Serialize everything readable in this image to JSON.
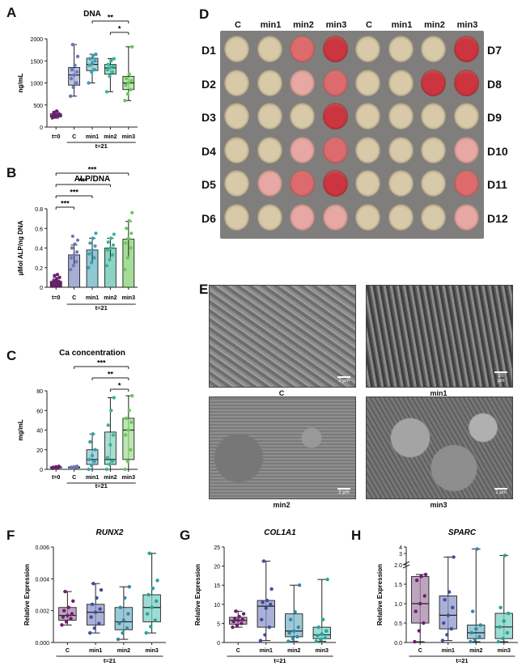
{
  "panels": {
    "A": {
      "letter": "A"
    },
    "B": {
      "letter": "B"
    },
    "C": {
      "letter": "C"
    },
    "D": {
      "letter": "D"
    },
    "E": {
      "letter": "E"
    },
    "F": {
      "letter": "F"
    },
    "G": {
      "letter": "G"
    },
    "H": {
      "letter": "H"
    }
  },
  "plate": {
    "col_labels": [
      "C",
      "min1",
      "min2",
      "min3",
      "C",
      "min1",
      "min2",
      "min3"
    ],
    "left_labels": [
      "D1",
      "D2",
      "D3",
      "D4",
      "D5",
      "D6"
    ],
    "right_labels": [
      "D7",
      "D8",
      "D9",
      "D10",
      "D11",
      "D12"
    ],
    "stain_levels": [
      [
        0,
        0,
        2,
        3,
        0,
        0,
        0,
        3
      ],
      [
        0,
        0,
        1,
        2,
        0,
        0,
        3,
        3
      ],
      [
        0,
        0,
        0,
        3,
        0,
        0,
        0,
        0
      ],
      [
        0,
        0,
        1,
        2,
        0,
        0,
        0,
        1
      ],
      [
        0,
        1,
        2,
        3,
        0,
        0,
        0,
        2
      ],
      [
        0,
        0,
        1,
        1,
        0,
        0,
        0,
        1
      ]
    ],
    "colors": {
      "well_plain": "#d8c9a8",
      "stain_light": "#e7a7a3",
      "stain_mid": "#dd6b6e",
      "stain_strong": "#cc3440",
      "plate_bg": "#7f7e7c"
    }
  },
  "sem": {
    "labels": [
      "C",
      "min1",
      "min2",
      "min3"
    ],
    "scale_text": [
      "2 µm",
      "20 µm",
      "2 µm",
      "2 µm"
    ]
  },
  "chart_data": [
    {
      "id": "A",
      "type": "box",
      "title": "DNA",
      "ylabel": "ng/mL",
      "ylim": [
        0,
        2000
      ],
      "yticks": [
        0,
        500,
        1000,
        1500,
        2000
      ],
      "categories": [
        "t=0",
        "C",
        "min1",
        "min2",
        "min3"
      ],
      "group_label": "t=21",
      "colors": [
        "#6b1f6e",
        "#6a78b8",
        "#3b9fb3",
        "#38b59a",
        "#66cc55"
      ],
      "fills": [
        "#8d5a8f",
        "#a7add4",
        "#8fc8d2",
        "#8dd3c2",
        "#a5dd98"
      ],
      "boxes": [
        {
          "min": 200,
          "q1": 230,
          "median": 260,
          "q3": 300,
          "max": 360,
          "points": [
            210,
            230,
            250,
            260,
            270,
            300,
            330,
            360
          ]
        },
        {
          "min": 700,
          "q1": 950,
          "median": 1180,
          "q3": 1350,
          "max": 1870,
          "points": [
            700,
            900,
            1000,
            1100,
            1180,
            1250,
            1300,
            1400,
            1600,
            1870
          ]
        },
        {
          "min": 1000,
          "q1": 1280,
          "median": 1420,
          "q3": 1560,
          "max": 1650,
          "points": [
            1000,
            1250,
            1300,
            1400,
            1450,
            1500,
            1550,
            1620,
            1650
          ]
        },
        {
          "min": 800,
          "q1": 1200,
          "median": 1340,
          "q3": 1420,
          "max": 1550,
          "points": [
            800,
            1150,
            1250,
            1300,
            1350,
            1380,
            1420,
            1500,
            1550
          ]
        },
        {
          "min": 600,
          "q1": 850,
          "median": 1000,
          "q3": 1150,
          "max": 1820,
          "points": [
            600,
            750,
            850,
            950,
            1000,
            1050,
            1100,
            1200,
            1820
          ]
        }
      ],
      "sig": [
        {
          "from": 2,
          "to": 4,
          "label": "**"
        },
        {
          "from": 3,
          "to": 4,
          "label": "*"
        }
      ]
    },
    {
      "id": "B",
      "type": "bar",
      "title": "ALP/DNA",
      "ylabel": "µMol ALP/ng DNA",
      "ylim": [
        0,
        0.8
      ],
      "yticks": [
        0.0,
        0.2,
        0.4,
        0.6,
        0.8
      ],
      "categories": [
        "t=0",
        "C",
        "min1",
        "min2",
        "min3"
      ],
      "group_label": "t=21",
      "colors": [
        "#6b1f6e",
        "#6a78b8",
        "#3b9fb3",
        "#38b59a",
        "#66cc55"
      ],
      "fills": [
        "#6b1f6e",
        "#a7add4",
        "#8fc8d2",
        "#8dd3c2",
        "#a5dd98"
      ],
      "bars": [
        {
          "value": 0.06,
          "err": 0.04,
          "points": [
            0.01,
            0.02,
            0.03,
            0.04,
            0.05,
            0.06,
            0.07,
            0.08,
            0.1,
            0.12,
            0.13
          ]
        },
        {
          "value": 0.33,
          "err": 0.1,
          "points": [
            0.18,
            0.22,
            0.26,
            0.3,
            0.33,
            0.36,
            0.4,
            0.44,
            0.48,
            0.52
          ]
        },
        {
          "value": 0.38,
          "err": 0.12,
          "points": [
            0.2,
            0.25,
            0.3,
            0.34,
            0.38,
            0.42,
            0.45,
            0.5,
            0.55
          ]
        },
        {
          "value": 0.4,
          "err": 0.1,
          "points": [
            0.22,
            0.28,
            0.33,
            0.38,
            0.4,
            0.43,
            0.46,
            0.5,
            0.54
          ]
        },
        {
          "value": 0.49,
          "err": 0.18,
          "points": [
            0.18,
            0.3,
            0.4,
            0.45,
            0.5,
            0.55,
            0.6,
            0.68,
            0.76
          ]
        }
      ],
      "sig": [
        {
          "from": 0,
          "to": 1,
          "label": "***"
        },
        {
          "from": 0,
          "to": 2,
          "label": "***"
        },
        {
          "from": 0,
          "to": 3,
          "label": "***"
        },
        {
          "from": 0,
          "to": 4,
          "label": "***"
        }
      ]
    },
    {
      "id": "C",
      "type": "box",
      "title": "Ca concentration",
      "ylabel": "mg/mL",
      "ylim": [
        0,
        80
      ],
      "yticks": [
        0,
        20,
        40,
        60,
        80
      ],
      "categories": [
        "t=0",
        "C",
        "min1",
        "min2",
        "min3"
      ],
      "group_label": "t=21",
      "colors": [
        "#6b1f6e",
        "#6a78b8",
        "#3b9fb3",
        "#38b59a",
        "#66cc55"
      ],
      "fills": [
        "#8d5a8f",
        "#a7add4",
        "#8fc8d2",
        "#8dd3c2",
        "#a5dd98"
      ],
      "boxes": [
        {
          "min": 1,
          "q1": 1.5,
          "median": 2,
          "q3": 2.5,
          "max": 3,
          "points": [
            1,
            1.5,
            2,
            2,
            2.5,
            3
          ]
        },
        {
          "min": 1,
          "q1": 1.5,
          "median": 2,
          "q3": 2.5,
          "max": 3,
          "points": [
            1,
            1.5,
            2,
            2,
            2.5,
            3
          ]
        },
        {
          "min": 0,
          "q1": 5,
          "median": 10,
          "q3": 20,
          "max": 36,
          "points": [
            0,
            4,
            8,
            10,
            14,
            20,
            28,
            36
          ]
        },
        {
          "min": 0,
          "q1": 5,
          "median": 10,
          "q3": 38,
          "max": 73,
          "points": [
            0,
            5,
            8,
            12,
            25,
            35,
            45,
            60,
            73
          ]
        },
        {
          "min": 0,
          "q1": 10,
          "median": 40,
          "q3": 52,
          "max": 75,
          "points": [
            0,
            8,
            20,
            35,
            40,
            48,
            52,
            60,
            75
          ]
        }
      ],
      "sig": [
        {
          "from": 1,
          "to": 4,
          "label": "***"
        },
        {
          "from": 2,
          "to": 4,
          "label": "**"
        },
        {
          "from": 3,
          "to": 4,
          "label": "*"
        }
      ]
    },
    {
      "id": "F",
      "type": "box",
      "title": "RUNX2",
      "ylabel": "Relative Expression",
      "ylim": [
        0,
        0.006
      ],
      "yticks": [
        0.0,
        0.002,
        0.004,
        0.006
      ],
      "ytick_labels": [
        "0.000",
        "0.002",
        "0.004",
        "0.006"
      ],
      "categories": [
        "C",
        "min1",
        "min2",
        "min3"
      ],
      "group_label": "t=21",
      "colors": [
        "#6b1f6e",
        "#3d4fa0",
        "#2f8aa8",
        "#1fa89a"
      ],
      "fills": [
        "#a886a9",
        "#8f96c8",
        "#7db6c8",
        "#7fcfc3"
      ],
      "boxes": [
        {
          "min": 0.0011,
          "q1": 0.0014,
          "median": 0.0017,
          "q3": 0.0022,
          "max": 0.0032,
          "points": [
            0.0011,
            0.0013,
            0.0015,
            0.0016,
            0.0017,
            0.0018,
            0.002,
            0.0022,
            0.0026,
            0.0032
          ]
        },
        {
          "min": 0.0006,
          "q1": 0.0011,
          "median": 0.0019,
          "q3": 0.0024,
          "max": 0.0037,
          "points": [
            0.0006,
            0.0009,
            0.0012,
            0.0016,
            0.0019,
            0.0021,
            0.0024,
            0.0028,
            0.0033,
            0.0037
          ]
        },
        {
          "min": 0.0002,
          "q1": 0.0008,
          "median": 0.0013,
          "q3": 0.0022,
          "max": 0.0035,
          "points": [
            0.0002,
            0.0006,
            0.0009,
            0.0012,
            0.0014,
            0.0018,
            0.0022,
            0.0028,
            0.0035
          ]
        },
        {
          "min": 0.0006,
          "q1": 0.0013,
          "median": 0.0022,
          "q3": 0.003,
          "max": 0.0056,
          "points": [
            0.0006,
            0.001,
            0.0014,
            0.0018,
            0.0022,
            0.0026,
            0.003,
            0.0034,
            0.0039,
            0.0056
          ]
        }
      ]
    },
    {
      "id": "G",
      "type": "box",
      "title": "COL1A1",
      "ylabel": "Relative Expression",
      "ylim": [
        0,
        25
      ],
      "yticks": [
        0,
        5,
        10,
        15,
        20,
        25
      ],
      "categories": [
        "C",
        "min1",
        "min2",
        "min3"
      ],
      "group_label": "t=21",
      "colors": [
        "#6b1f6e",
        "#3d4fa0",
        "#2f8aa8",
        "#1fa89a"
      ],
      "fills": [
        "#a886a9",
        "#8f96c8",
        "#7db6c8",
        "#7fcfc3"
      ],
      "boxes": [
        {
          "min": 4,
          "q1": 4.8,
          "median": 5.8,
          "q3": 6.6,
          "max": 8.2,
          "points": [
            4,
            4.5,
            5,
            5.5,
            5.8,
            6,
            6.3,
            6.8,
            7.5,
            8.2
          ]
        },
        {
          "min": 0.5,
          "q1": 4,
          "median": 9.5,
          "q3": 11,
          "max": 21.3,
          "points": [
            0.5,
            2,
            4,
            6,
            9,
            10,
            10.5,
            11,
            14,
            21.3
          ]
        },
        {
          "min": 0.3,
          "q1": 1.5,
          "median": 3,
          "q3": 7.5,
          "max": 15,
          "points": [
            0.3,
            1,
            1.5,
            2.5,
            3,
            4,
            6,
            8,
            15
          ]
        },
        {
          "min": 0.3,
          "q1": 1,
          "median": 2,
          "q3": 4,
          "max": 16.5,
          "points": [
            0.3,
            0.8,
            1.2,
            1.8,
            2.2,
            3,
            4,
            6,
            16.5
          ]
        }
      ]
    },
    {
      "id": "H",
      "type": "box",
      "title": "SPARC",
      "ylabel": "Relative Expression",
      "ylim": [
        0,
        4
      ],
      "yticks": [
        0.0,
        0.5,
        1.0,
        1.5,
        2.0,
        3,
        4
      ],
      "ytick_labels": [
        "0.0",
        "0.5",
        "1.0",
        "1.5",
        "2.0",
        "3",
        "4"
      ],
      "categories": [
        "C",
        "min1",
        "min2",
        "min3"
      ],
      "group_label": "t=21",
      "colors": [
        "#6b1f6e",
        "#3d4fa0",
        "#2f8aa8",
        "#1fa89a"
      ],
      "fills": [
        "#a886a9",
        "#8f96c8",
        "#7db6c8",
        "#7fcfc3"
      ],
      "boxes": [
        {
          "min": 0.02,
          "q1": 0.5,
          "median": 1.0,
          "q3": 1.7,
          "max": 1.75,
          "points": [
            0.02,
            0.3,
            0.5,
            0.8,
            1.0,
            1.2,
            1.6,
            1.7,
            1.75
          ]
        },
        {
          "min": 0.05,
          "q1": 0.35,
          "median": 0.7,
          "q3": 1.2,
          "max": 2.45,
          "points": [
            0.05,
            0.2,
            0.35,
            0.5,
            0.7,
            0.9,
            1.1,
            1.3,
            2.45
          ]
        },
        {
          "min": 0.02,
          "q1": 0.1,
          "median": 0.25,
          "q3": 0.45,
          "max": 3.7,
          "points": [
            0.02,
            0.08,
            0.15,
            0.25,
            0.35,
            0.45,
            0.8,
            3.7
          ]
        },
        {
          "min": 0.02,
          "q1": 0.1,
          "median": 0.4,
          "q3": 0.75,
          "max": 2.7,
          "points": [
            0.02,
            0.1,
            0.25,
            0.4,
            0.55,
            0.75,
            0.9,
            2.7
          ]
        }
      ]
    }
  ]
}
